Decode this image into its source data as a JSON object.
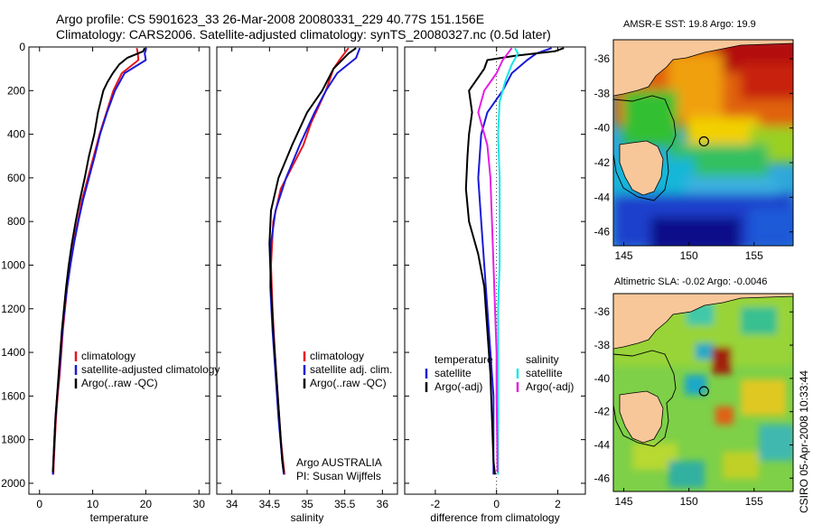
{
  "header": {
    "title_line1": "Argo profile: CS 5901623_33 26-Mar-2008 20080331_229 40.77S 151.156E",
    "title_line2": "Climatology: CARS2006. Satellite-adjusted climatology: synTS_20080327.nc (0.5d later)"
  },
  "colors": {
    "climatology": "#e8141e",
    "satellite": "#1a1ad8",
    "argo": "#000000",
    "sal_satellite": "#19e6e6",
    "sal_argo": "#e61ee6",
    "land": "#f7c79a"
  },
  "chart_data": [
    {
      "type": "line",
      "panel": "temperature",
      "xlabel": "temperature",
      "xlim": [
        -2,
        32
      ],
      "ylim": [
        2050,
        0
      ],
      "xticks": [
        "0",
        "10",
        "20",
        "30"
      ],
      "yticks": [
        "0",
        "200",
        "400",
        "600",
        "800",
        "1000",
        "1200",
        "1400",
        "1600",
        "1800",
        "2000"
      ],
      "legend": [
        "climatology",
        "satellite-adjusted climatology",
        "Argo(..raw -QC)"
      ],
      "series": [
        {
          "name": "climatology",
          "color": "climatology",
          "points": [
            [
              18.3,
              5
            ],
            [
              18.5,
              30
            ],
            [
              18.6,
              60
            ],
            [
              15.5,
              120
            ],
            [
              13.9,
              200
            ],
            [
              12.6,
              300
            ],
            [
              11.3,
              400
            ],
            [
              10.2,
              500
            ],
            [
              9.1,
              600
            ],
            [
              8.0,
              700
            ],
            [
              7.2,
              800
            ],
            [
              6.4,
              900
            ],
            [
              5.8,
              1000
            ],
            [
              5.2,
              1100
            ],
            [
              4.8,
              1200
            ],
            [
              4.4,
              1300
            ],
            [
              4.1,
              1400
            ],
            [
              3.8,
              1500
            ],
            [
              3.4,
              1600
            ],
            [
              3.1,
              1700
            ],
            [
              2.9,
              1800
            ],
            [
              2.7,
              1900
            ],
            [
              2.6,
              1960
            ]
          ]
        },
        {
          "name": "satellite-adjusted climatology",
          "color": "satellite",
          "points": [
            [
              20.1,
              5
            ],
            [
              19.8,
              30
            ],
            [
              20.0,
              60
            ],
            [
              16.0,
              120
            ],
            [
              14.2,
              200
            ],
            [
              12.7,
              300
            ],
            [
              11.4,
              400
            ],
            [
              10.4,
              500
            ],
            [
              9.3,
              600
            ],
            [
              8.2,
              700
            ],
            [
              7.3,
              800
            ],
            [
              6.5,
              900
            ],
            [
              5.8,
              1000
            ],
            [
              5.2,
              1100
            ],
            [
              4.7,
              1200
            ],
            [
              4.3,
              1300
            ],
            [
              4.0,
              1400
            ],
            [
              3.7,
              1500
            ],
            [
              3.3,
              1600
            ],
            [
              3.0,
              1700
            ],
            [
              2.8,
              1800
            ],
            [
              2.6,
              1900
            ],
            [
              2.5,
              1960
            ]
          ]
        },
        {
          "name": "Argo(..raw -QC)",
          "color": "argo",
          "points": [
            [
              19.8,
              5
            ],
            [
              19.5,
              20
            ],
            [
              16.5,
              50
            ],
            [
              15.0,
              80
            ],
            [
              13.8,
              120
            ],
            [
              12.8,
              160
            ],
            [
              12.0,
              200
            ],
            [
              11.0,
              300
            ],
            [
              10.3,
              400
            ],
            [
              9.3,
              500
            ],
            [
              8.5,
              600
            ],
            [
              7.6,
              700
            ],
            [
              6.8,
              800
            ],
            [
              6.1,
              900
            ],
            [
              5.5,
              1000
            ],
            [
              5.0,
              1100
            ],
            [
              4.6,
              1200
            ],
            [
              4.2,
              1300
            ],
            [
              3.9,
              1400
            ],
            [
              3.6,
              1500
            ],
            [
              3.3,
              1600
            ],
            [
              3.0,
              1700
            ],
            [
              2.8,
              1800
            ],
            [
              2.6,
              1900
            ],
            [
              2.5,
              1950
            ]
          ]
        }
      ]
    },
    {
      "type": "line",
      "panel": "salinity",
      "xlabel": "salinity",
      "xlim": [
        33.8,
        36.2
      ],
      "ylim": [
        2050,
        0
      ],
      "xticks": [
        "34",
        "34.5",
        "35",
        "35.5",
        "36"
      ],
      "legend": [
        "climatology",
        "satellite adj. clim.",
        "Argo(..raw -QC)"
      ],
      "series": [
        {
          "name": "climatology",
          "color": "climatology",
          "points": [
            [
              35.55,
              5
            ],
            [
              35.45,
              50
            ],
            [
              35.35,
              100
            ],
            [
              35.25,
              200
            ],
            [
              35.05,
              350
            ],
            [
              34.95,
              450
            ],
            [
              34.8,
              550
            ],
            [
              34.65,
              650
            ],
            [
              34.55,
              800
            ],
            [
              34.52,
              1000
            ],
            [
              34.54,
              1200
            ],
            [
              34.57,
              1400
            ],
            [
              34.61,
              1600
            ],
            [
              34.65,
              1800
            ],
            [
              34.7,
              1960
            ]
          ]
        },
        {
          "name": "satellite adj. clim.",
          "color": "satellite",
          "points": [
            [
              35.7,
              5
            ],
            [
              35.65,
              50
            ],
            [
              35.4,
              120
            ],
            [
              35.25,
              200
            ],
            [
              35.1,
              300
            ],
            [
              34.9,
              450
            ],
            [
              34.72,
              600
            ],
            [
              34.58,
              750
            ],
            [
              34.52,
              900
            ],
            [
              34.51,
              1100
            ],
            [
              34.54,
              1300
            ],
            [
              34.58,
              1500
            ],
            [
              34.62,
              1700
            ],
            [
              34.67,
              1900
            ],
            [
              34.69,
              1960
            ]
          ]
        },
        {
          "name": "Argo(..raw -QC)",
          "color": "argo",
          "points": [
            [
              35.65,
              5
            ],
            [
              35.55,
              30
            ],
            [
              35.35,
              100
            ],
            [
              35.2,
              200
            ],
            [
              35.0,
              300
            ],
            [
              34.8,
              450
            ],
            [
              34.62,
              600
            ],
            [
              34.52,
              750
            ],
            [
              34.5,
              900
            ],
            [
              34.52,
              1100
            ],
            [
              34.55,
              1300
            ],
            [
              34.59,
              1500
            ],
            [
              34.63,
              1700
            ],
            [
              34.67,
              1900
            ],
            [
              34.69,
              1950
            ]
          ]
        }
      ]
    },
    {
      "type": "line",
      "panel": "difference",
      "xlabel": "difference from climatology",
      "xlim": [
        -3,
        2.9
      ],
      "ylim": [
        2050,
        0
      ],
      "xticks": [
        "-2",
        "0",
        "2"
      ],
      "legend_titles": [
        "temperature",
        "salinity"
      ],
      "legend": [
        "satellite",
        "Argo(-adj)",
        "satellite",
        "Argo(-adj)"
      ],
      "zero_line": 0,
      "series": [
        {
          "name": "temperature satellite",
          "color": "satellite",
          "points": [
            [
              1.8,
              5
            ],
            [
              1.3,
              30
            ],
            [
              1.0,
              60
            ],
            [
              0.5,
              120
            ],
            [
              0.2,
              200
            ],
            [
              -0.3,
              300
            ],
            [
              -0.5,
              400
            ],
            [
              -0.6,
              600
            ],
            [
              -0.5,
              800
            ],
            [
              -0.4,
              1000
            ],
            [
              -0.3,
              1200
            ],
            [
              -0.2,
              1400
            ],
            [
              -0.1,
              1600
            ],
            [
              -0.1,
              1800
            ],
            [
              -0.1,
              1960
            ]
          ]
        },
        {
          "name": "temperature Argo(-adj)",
          "color": "argo",
          "points": [
            [
              2.2,
              5
            ],
            [
              1.9,
              20
            ],
            [
              0.6,
              40
            ],
            [
              -0.3,
              60
            ],
            [
              -0.4,
              100
            ],
            [
              -0.9,
              200
            ],
            [
              -0.8,
              300
            ],
            [
              -0.9,
              400
            ],
            [
              -0.95,
              500
            ],
            [
              -1.0,
              650
            ],
            [
              -0.9,
              800
            ],
            [
              -0.6,
              950
            ],
            [
              -0.4,
              1100
            ],
            [
              -0.3,
              1300
            ],
            [
              -0.2,
              1500
            ],
            [
              -0.15,
              1700
            ],
            [
              -0.1,
              1900
            ],
            [
              -0.05,
              1960
            ]
          ]
        },
        {
          "name": "salinity satellite",
          "color": "sal_satellite",
          "points": [
            [
              0.6,
              5
            ],
            [
              0.7,
              30
            ],
            [
              0.5,
              80
            ],
            [
              0.3,
              150
            ],
            [
              0.1,
              250
            ],
            [
              0.05,
              400
            ],
            [
              0.1,
              600
            ],
            [
              0.1,
              800
            ],
            [
              0.1,
              1000
            ],
            [
              0.05,
              1200
            ],
            [
              0.05,
              1400
            ],
            [
              0.05,
              1600
            ],
            [
              0.05,
              1800
            ],
            [
              0.05,
              1960
            ]
          ]
        },
        {
          "name": "salinity Argo(-adj)",
          "color": "sal_argo",
          "points": [
            [
              0.5,
              5
            ],
            [
              0.2,
              60
            ],
            [
              0.0,
              120
            ],
            [
              -0.4,
              200
            ],
            [
              -0.6,
              300
            ],
            [
              -0.3,
              450
            ],
            [
              -0.2,
              600
            ],
            [
              -0.15,
              800
            ],
            [
              -0.1,
              1000
            ],
            [
              -0.05,
              1200
            ],
            [
              0.0,
              1400
            ],
            [
              0.0,
              1600
            ],
            [
              0.02,
              1800
            ],
            [
              0.03,
              1950
            ]
          ]
        }
      ]
    },
    {
      "type": "heatmap",
      "panel": "sst_map",
      "title": "AMSR-E SST: 19.8  Argo: 19.9",
      "xlim": [
        144.2,
        158.0
      ],
      "ylim": [
        -46.8,
        -34.9
      ],
      "xticks": [
        "145",
        "150",
        "155"
      ],
      "yticks": [
        "-36",
        "-38",
        "-40",
        "-42",
        "-44",
        "-46"
      ],
      "argo_position": [
        151.156,
        -40.77
      ]
    },
    {
      "type": "heatmap",
      "panel": "sla_map",
      "title": "Altimetric SLA: -0.02  Argo: -0.0046",
      "xlim": [
        144.2,
        158.0
      ],
      "ylim": [
        -46.8,
        -34.9
      ],
      "xticks": [
        "145",
        "150",
        "155"
      ],
      "yticks": [
        "-36",
        "-38",
        "-40",
        "-42",
        "-44",
        "-46"
      ],
      "argo_position": [
        151.156,
        -40.77
      ]
    }
  ],
  "notes": {
    "argo_credit_line1": "Argo AUSTRALIA",
    "argo_credit_line2": "PI: Susan Wijffels",
    "csiro_stamp": "CSIRO 05-Apr-2008 10:33:44"
  }
}
